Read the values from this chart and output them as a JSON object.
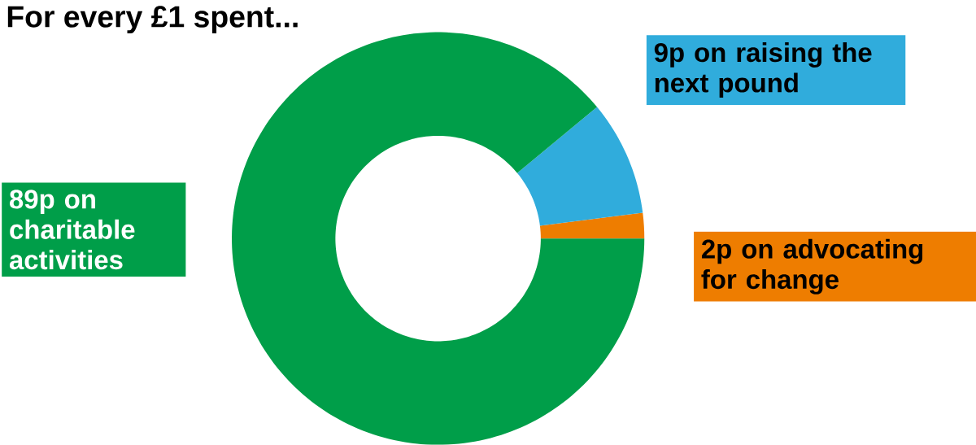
{
  "chart_data": {
    "type": "donut",
    "title": "For every £1 spent...",
    "categories": [
      "2p on advocating for change",
      "9p on raising the next pound",
      "89p on charitable activities"
    ],
    "values": [
      2,
      9,
      89
    ],
    "colors": [
      "#ee7d00",
      "#30acdc",
      "#009e49"
    ]
  }
}
